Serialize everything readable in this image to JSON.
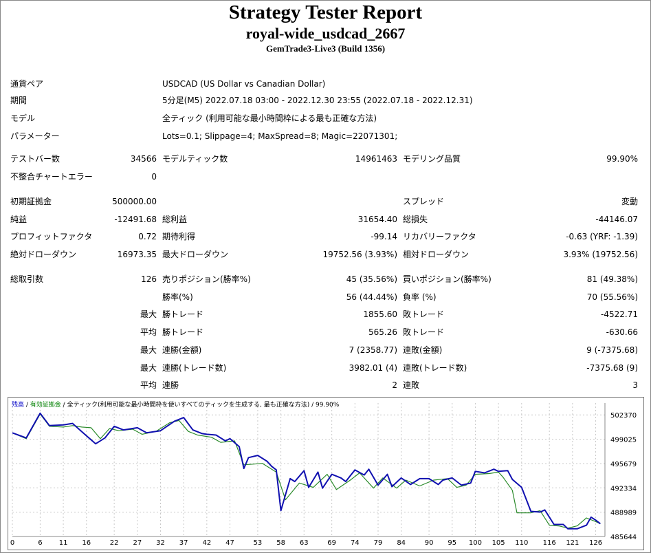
{
  "header": {
    "title": "Strategy Tester Report",
    "name": "royal-wide_usdcad_2667",
    "server": "GemTrade3-Live3 (Build 1356)"
  },
  "settings": {
    "symbol_label": "通貨ペア",
    "symbol_value": "USDCAD (US Dollar vs Canadian Dollar)",
    "period_label": "期間",
    "period_value": "5分足(M5) 2022.07.18 03:00 - 2022.12.30 23:55 (2022.07.18 - 2022.12.31)",
    "model_label": "モデル",
    "model_value": "全ティック (利用可能な最小時間枠による最も正確な方法)",
    "params_label": "パラメーター",
    "params_value": "Lots=0.1; Slippage=4; MaxSpread=8; Magic=22071301;"
  },
  "stats": {
    "bars_label": "テストバー数",
    "bars_value": "34566",
    "ticks_label": "モデルティック数",
    "ticks_value": "14961463",
    "quality_label": "モデリング品質",
    "quality_value": "99.90%",
    "mismatch_label": "不整合チャートエラー",
    "mismatch_value": "0",
    "deposit_label": "初期証拠金",
    "deposit_value": "500000.00",
    "spread_label": "スプレッド",
    "spread_value": "変動",
    "net_label": "純益",
    "net_value": "-12491.68",
    "gross_profit_label": "総利益",
    "gross_profit_value": "31654.40",
    "gross_loss_label": "総損失",
    "gross_loss_value": "-44146.07",
    "pf_label": "プロフィットファクタ",
    "pf_value": "0.72",
    "payoff_label": "期待利得",
    "payoff_value": "-99.14",
    "recovery_label": "リカバリーファクタ",
    "recovery_value": "-0.63 (YRF: -1.39)",
    "abs_dd_label": "絶対ドローダウン",
    "abs_dd_value": "16973.35",
    "max_dd_label": "最大ドローダウン",
    "max_dd_value": "19752.56 (3.93%)",
    "rel_dd_label": "相対ドローダウン",
    "rel_dd_value": "3.93% (19752.56)",
    "trades_label": "総取引数",
    "trades_value": "126",
    "short_label": "売りポジション(勝率%)",
    "short_value": "45 (35.56%)",
    "long_label": "買いポジション(勝率%)",
    "long_value": "81 (49.38%)",
    "winrate_label": "勝率(%)",
    "winrate_value": "56 (44.44%)",
    "lossrate_label": "負率 (%)",
    "lossrate_value": "70 (55.56%)",
    "max_label": "最大",
    "avg_label": "平均",
    "largest_win_label": "勝トレード",
    "largest_win_value": "1855.60",
    "largest_loss_label": "敗トレード",
    "largest_loss_value": "-4522.71",
    "avg_win_label": "勝トレード",
    "avg_win_value": "565.26",
    "avg_loss_label": "敗トレード",
    "avg_loss_value": "-630.66",
    "cons_win_amt_label": "連勝(金額)",
    "cons_win_amt_value": "7 (2358.77)",
    "cons_loss_amt_label": "連敗(金額)",
    "cons_loss_amt_value": "9 (-7375.68)",
    "cons_win_cnt_label": "連勝(トレード数)",
    "cons_win_cnt_value": "3982.01 (4)",
    "cons_loss_cnt_label": "連敗(トレード数)",
    "cons_loss_cnt_value": "-7375.68 (9)",
    "avg_cons_win_label": "連勝",
    "avg_cons_win_value": "2",
    "avg_cons_loss_label": "連敗",
    "avg_cons_loss_value": "3"
  },
  "chart_legend": {
    "balance": "残高",
    "sep1": " / ",
    "equity": "有効証拠金",
    "sep2": " / ",
    "model": "全ティック(利用可能な最小時間枠を使いすべてのティックを生成する, 最も正確な方法)",
    "sep3": " / ",
    "quality": "99.90%"
  },
  "chart_data": {
    "type": "line",
    "ylim": [
      485644,
      504000
    ],
    "xlim": [
      0,
      128
    ],
    "yticks": [
      502370,
      499025,
      495679,
      492334,
      488989,
      485644
    ],
    "xticks": [
      0,
      6,
      11,
      16,
      22,
      27,
      32,
      37,
      42,
      47,
      53,
      58,
      63,
      69,
      74,
      79,
      84,
      90,
      95,
      100,
      105,
      110,
      116,
      121,
      126
    ],
    "series": [
      {
        "name": "残高",
        "color": "#1010b0",
        "x": [
          0,
          3,
          6,
          8,
          11,
          13,
          16,
          18,
          20,
          22,
          24,
          27,
          29,
          32,
          35,
          37,
          39,
          41,
          42,
          44,
          46,
          47,
          49,
          50,
          51,
          53,
          55,
          56,
          57,
          58,
          60,
          61,
          63,
          64,
          66,
          67,
          69,
          71,
          72,
          74,
          76,
          77,
          79,
          81,
          82,
          84,
          86,
          88,
          90,
          92,
          93,
          95,
          97,
          99,
          100,
          102,
          104,
          105,
          107,
          108,
          110,
          112,
          114,
          115,
          117,
          119,
          120,
          122,
          124,
          125,
          126,
          127
        ],
        "y": [
          499900,
          499200,
          502600,
          500900,
          501000,
          501200,
          499500,
          498400,
          499200,
          500800,
          500300,
          500600,
          499900,
          500200,
          501500,
          502000,
          500300,
          499800,
          499700,
          499600,
          498800,
          499100,
          498000,
          495000,
          496500,
          496800,
          496000,
          495300,
          494800,
          489200,
          493600,
          493200,
          494700,
          492400,
          494500,
          492300,
          494200,
          493700,
          493200,
          494800,
          494100,
          494900,
          492700,
          494200,
          492500,
          493700,
          492800,
          493600,
          493600,
          492800,
          493400,
          493700,
          492700,
          493000,
          494600,
          494400,
          494900,
          494600,
          494700,
          493500,
          492400,
          489100,
          489000,
          489300,
          487300,
          487300,
          486700,
          486700,
          487200,
          488300,
          487900,
          487400
        ]
      },
      {
        "name": "有効証拠金",
        "color": "#2a8a2a",
        "x": [
          0,
          3,
          6,
          8,
          11,
          13,
          15,
          17,
          19,
          21,
          23,
          26,
          28,
          31,
          34,
          36,
          38,
          40,
          43,
          45,
          48,
          50,
          52,
          54,
          57,
          59,
          62,
          65,
          68,
          70,
          73,
          75,
          78,
          80,
          83,
          85,
          88,
          91,
          94,
          96,
          98,
          100,
          103,
          105,
          106,
          108,
          109,
          112,
          114,
          116,
          118,
          120,
          122,
          124,
          126,
          127
        ],
        "y": [
          499900,
          499100,
          502500,
          500800,
          500700,
          500900,
          500700,
          500600,
          499100,
          500500,
          500200,
          500400,
          499700,
          500100,
          501300,
          501600,
          500100,
          499600,
          499300,
          498600,
          498800,
          495500,
          495600,
          495700,
          494500,
          490700,
          493000,
          492400,
          494200,
          492100,
          493400,
          494400,
          492300,
          493700,
          492300,
          493400,
          492600,
          493400,
          493600,
          492400,
          492700,
          494200,
          494300,
          494500,
          493800,
          492000,
          488900,
          488900,
          489200,
          487200,
          487100,
          486800,
          487100,
          488200,
          487700,
          487400
        ]
      }
    ]
  }
}
